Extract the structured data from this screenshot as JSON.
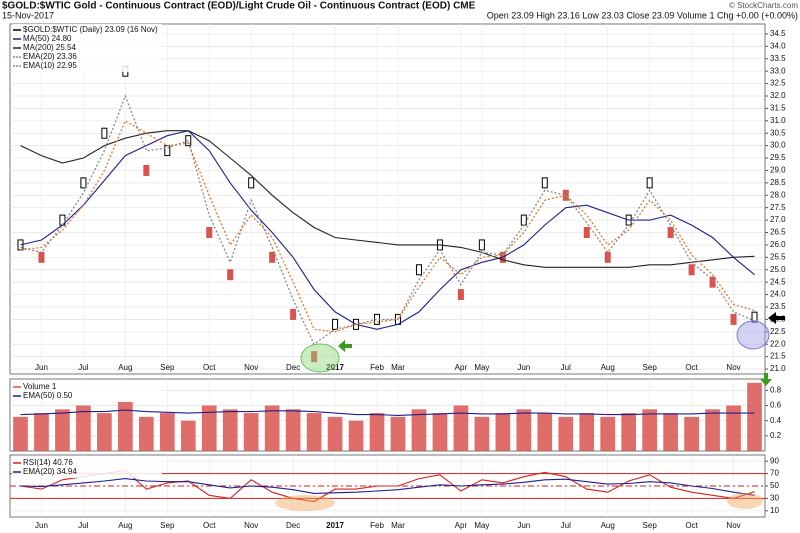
{
  "chart_data": [
    {
      "type": "price",
      "title": "$GOLD:$WTIC Gold - Continuous Contract (EOD)/Light Crude Oil - Continuous Contract (EOD) CME",
      "date": "15-Nov-2017",
      "quote": "Open 23.09 High 23.16 Low 23.03 Close 23.09 Volume 1 Chg +0.00 (+0.00%)",
      "credit": "© StockCharts.com",
      "categories": [
        null,
        "Jun",
        null,
        "Jul",
        null,
        "Aug",
        null,
        "Sep",
        null,
        "Oct",
        null,
        "Nov",
        null,
        "Dec",
        null,
        "2017",
        null,
        "Feb",
        "Mar",
        null,
        null,
        "Apr",
        "May",
        null,
        "Jun",
        null,
        "Jul",
        null,
        "Aug",
        null,
        "Sep",
        null,
        "Oct",
        null,
        "Nov",
        null
      ],
      "ylim": [
        20.8,
        34.9
      ],
      "yticks": [
        {
          "value": 21.0,
          "label": "21.0"
        },
        {
          "value": 21.5,
          "label": "21.5"
        },
        {
          "value": 22.0,
          "label": "22.0"
        },
        {
          "value": 22.5,
          "label": "22.5"
        },
        {
          "value": 23.0,
          "label": "23.0"
        },
        {
          "value": 23.5,
          "label": "23.5"
        },
        {
          "value": 24.0,
          "label": "24.0"
        },
        {
          "value": 24.5,
          "label": "24.5"
        },
        {
          "value": 25.0,
          "label": "25.0"
        },
        {
          "value": 25.5,
          "label": "25.5"
        },
        {
          "value": 26.0,
          "label": "26.0"
        },
        {
          "value": 26.5,
          "label": "26.5"
        },
        {
          "value": 27.0,
          "label": "27.0"
        },
        {
          "value": 27.5,
          "label": "27.5"
        },
        {
          "value": 28.0,
          "label": "28.0"
        },
        {
          "value": 28.5,
          "label": "28.5"
        },
        {
          "value": 29.0,
          "label": "29.0"
        },
        {
          "value": 29.5,
          "label": "29.5"
        },
        {
          "value": 30.0,
          "label": "30.0"
        },
        {
          "value": 30.5,
          "label": "30.5"
        },
        {
          "value": 31.0,
          "label": "31.0"
        },
        {
          "value": 31.5,
          "label": "31.5"
        },
        {
          "value": 32.0,
          "label": "32.0"
        },
        {
          "value": 32.5,
          "label": "32.5"
        },
        {
          "value": 33.0,
          "label": "33.0"
        },
        {
          "value": 33.5,
          "label": "33.5"
        },
        {
          "value": 34.0,
          "label": "34.0"
        },
        {
          "value": 34.5,
          "label": "34.5"
        }
      ],
      "grid": true,
      "series": [
        {
          "name": "$GOLD:$WTIC (Daily) 23.09 (16 Nov)",
          "kind": "candle",
          "color": "#000000",
          "down_color": "#d9534f",
          "values": [
            26.0,
            25.5,
            27.0,
            28.5,
            30.5,
            33.0,
            29.0,
            29.8,
            30.2,
            26.5,
            24.8,
            28.5,
            25.5,
            23.2,
            21.5,
            22.8,
            22.8,
            23.0,
            23.0,
            25.0,
            26.0,
            24.0,
            26.0,
            25.5,
            27.0,
            28.5,
            28.0,
            26.5,
            25.5,
            27.0,
            28.5,
            26.5,
            25.0,
            24.5,
            23.0,
            23.09
          ]
        },
        {
          "name": "MA(50) 24.80",
          "kind": "line",
          "color": "#1f1f8f",
          "dash": false,
          "values": [
            26.0,
            26.2,
            26.8,
            27.6,
            28.6,
            29.6,
            30.0,
            30.4,
            30.6,
            29.8,
            28.5,
            27.4,
            26.5,
            25.5,
            24.2,
            23.3,
            22.8,
            22.6,
            22.8,
            23.3,
            24.2,
            25.0,
            25.3,
            25.5,
            26.0,
            26.8,
            27.5,
            27.6,
            27.3,
            27.0,
            27.0,
            27.2,
            26.8,
            26.3,
            25.5,
            24.8
          ]
        },
        {
          "name": "MA(200) 25.54",
          "kind": "line",
          "color": "#222222",
          "dash": false,
          "values": [
            30.0,
            29.6,
            29.3,
            29.5,
            30.0,
            30.3,
            30.5,
            30.6,
            30.6,
            30.2,
            29.5,
            28.8,
            28.0,
            27.3,
            26.7,
            26.3,
            26.2,
            26.1,
            26.0,
            26.0,
            26.0,
            25.9,
            25.7,
            25.4,
            25.2,
            25.1,
            25.1,
            25.1,
            25.1,
            25.1,
            25.2,
            25.2,
            25.3,
            25.4,
            25.5,
            25.54
          ]
        },
        {
          "name": "EMA(20) 23.36",
          "kind": "line",
          "color": "#e8772e",
          "dash": true,
          "values": [
            25.8,
            25.9,
            26.6,
            27.6,
            29.0,
            31.0,
            30.5,
            30.0,
            30.1,
            28.0,
            26.0,
            27.2,
            26.3,
            24.5,
            22.6,
            22.5,
            22.8,
            22.9,
            23.0,
            24.3,
            25.5,
            24.8,
            25.5,
            25.6,
            26.5,
            27.8,
            28.0,
            27.2,
            26.0,
            26.6,
            27.8,
            27.0,
            25.6,
            24.8,
            23.6,
            23.36
          ]
        },
        {
          "name": "EMA(10) 22.95",
          "kind": "line",
          "color": "#888888",
          "dash": true,
          "values": [
            25.9,
            25.7,
            26.8,
            28.1,
            29.8,
            32.0,
            29.8,
            29.9,
            30.2,
            27.2,
            25.3,
            27.8,
            25.9,
            23.8,
            22.0,
            22.6,
            22.8,
            23.0,
            23.0,
            24.6,
            25.8,
            24.4,
            25.7,
            25.6,
            26.8,
            28.2,
            28.0,
            26.9,
            25.7,
            26.8,
            28.2,
            26.8,
            25.3,
            24.6,
            23.3,
            22.95
          ]
        }
      ]
    },
    {
      "type": "volume",
      "categories": [
        null,
        "Jun",
        null,
        "Jul",
        null,
        "Aug",
        null,
        "Sep",
        null,
        "Oct",
        null,
        "Nov",
        null,
        "Dec",
        null,
        "2017",
        null,
        "Feb",
        "Mar",
        null,
        null,
        "Apr",
        "May",
        null,
        "Jun",
        null,
        "Jul",
        null,
        "Aug",
        null,
        "Sep",
        null,
        "Oct",
        null,
        "Nov",
        null
      ],
      "ylim": [
        0,
        0.95
      ],
      "yticks": [
        0.2,
        0.4,
        0.6,
        0.8
      ],
      "grid": true,
      "series": [
        {
          "name": "Volume 1",
          "kind": "bar",
          "color": "#d9534f",
          "values": [
            0.45,
            0.5,
            0.55,
            0.6,
            0.5,
            0.65,
            0.45,
            0.5,
            0.4,
            0.6,
            0.55,
            0.5,
            0.6,
            0.55,
            0.5,
            0.45,
            0.4,
            0.5,
            0.45,
            0.55,
            0.5,
            0.6,
            0.45,
            0.5,
            0.55,
            0.5,
            0.45,
            0.5,
            0.45,
            0.5,
            0.55,
            0.5,
            0.45,
            0.55,
            0.6,
            0.9
          ]
        },
        {
          "name": "EMA(50) 0.50",
          "kind": "line",
          "color": "#1f1f8f",
          "dash": false,
          "values": [
            0.48,
            0.49,
            0.5,
            0.52,
            0.52,
            0.54,
            0.52,
            0.51,
            0.5,
            0.51,
            0.52,
            0.52,
            0.53,
            0.53,
            0.52,
            0.5,
            0.48,
            0.48,
            0.47,
            0.48,
            0.49,
            0.5,
            0.49,
            0.49,
            0.5,
            0.5,
            0.49,
            0.49,
            0.48,
            0.48,
            0.49,
            0.49,
            0.49,
            0.5,
            0.5,
            0.5
          ]
        }
      ]
    },
    {
      "type": "rsi",
      "categories": [
        null,
        "Jun",
        null,
        "Jul",
        null,
        "Aug",
        null,
        "Sep",
        null,
        "Oct",
        null,
        "Nov",
        null,
        "Dec",
        null,
        "2017",
        null,
        "Feb",
        "Mar",
        null,
        null,
        "Apr",
        "May",
        null,
        "Jun",
        null,
        "Jul",
        null,
        "Aug",
        null,
        "Sep",
        null,
        "Oct",
        null,
        "Nov",
        null
      ],
      "ylim": [
        0,
        100
      ],
      "yticks": [
        10,
        30,
        50,
        70,
        90
      ],
      "grid": true,
      "hlines": [
        {
          "value": 70,
          "color": "#cc2222",
          "dash": false
        },
        {
          "value": 50,
          "color": "#cc2222",
          "dash": true
        },
        {
          "value": 30,
          "color": "#cc2222",
          "dash": false
        }
      ],
      "series": [
        {
          "name": "RSI(14) 40.76",
          "kind": "line",
          "color": "#d62020",
          "dash": false,
          "values": [
            50,
            45,
            60,
            65,
            70,
            75,
            45,
            55,
            58,
            35,
            30,
            60,
            40,
            30,
            25,
            45,
            45,
            50,
            50,
            62,
            68,
            42,
            60,
            55,
            65,
            72,
            65,
            45,
            40,
            58,
            68,
            48,
            40,
            35,
            30,
            40.76
          ]
        },
        {
          "name": "EMA(20) 34.94",
          "kind": "line",
          "color": "#1f1f8f",
          "dash": false,
          "values": [
            50,
            49,
            52,
            55,
            58,
            62,
            58,
            57,
            57,
            52,
            47,
            50,
            48,
            44,
            38,
            39,
            40,
            42,
            44,
            48,
            52,
            50,
            52,
            53,
            56,
            60,
            61,
            57,
            53,
            54,
            57,
            55,
            50,
            46,
            40,
            34.94
          ]
        }
      ]
    }
  ]
}
